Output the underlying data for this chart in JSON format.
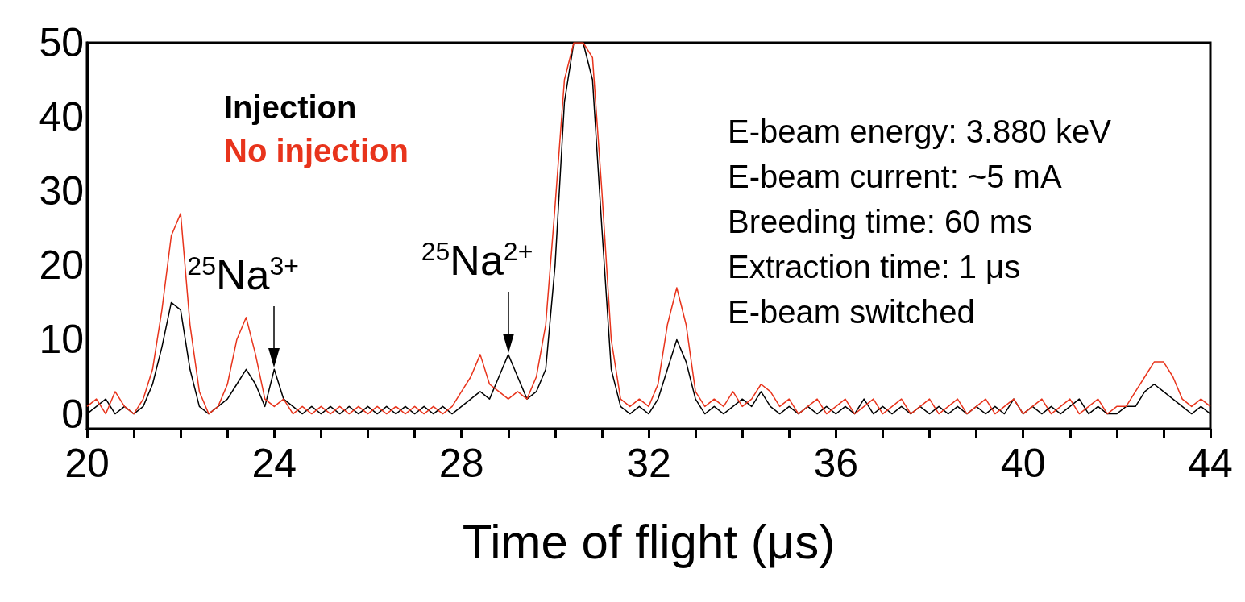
{
  "chart_data": {
    "type": "line",
    "xlabel": "Time of flight (μs)",
    "xlim": [
      20,
      44
    ],
    "ylim": [
      -2,
      50
    ],
    "xticks": [
      20,
      {
        "value": 21,
        "label": null
      },
      {
        "value": 22,
        "label": null
      },
      {
        "value": 23,
        "label": null
      },
      24,
      {
        "value": 25,
        "label": null
      },
      {
        "value": 26,
        "label": null
      },
      {
        "value": 27,
        "label": null
      },
      28,
      {
        "value": 29,
        "label": null
      },
      {
        "value": 30,
        "label": null
      },
      {
        "value": 31,
        "label": null
      },
      32,
      {
        "value": 33,
        "label": null
      },
      {
        "value": 34,
        "label": null
      },
      {
        "value": 35,
        "label": null
      },
      36,
      {
        "value": 37,
        "label": null
      },
      {
        "value": 38,
        "label": null
      },
      {
        "value": 39,
        "label": null
      },
      40,
      {
        "value": 41,
        "label": null
      },
      {
        "value": 42,
        "label": null
      },
      {
        "value": 43,
        "label": null
      },
      44
    ],
    "yticks": [
      0,
      10,
      20,
      30,
      40,
      50
    ],
    "grid": false,
    "legend": "top left",
    "marker": "none",
    "line_style": "solid",
    "x": [
      20,
      20.2,
      20.4,
      20.6,
      20.8,
      21,
      21.2,
      21.4,
      21.6,
      21.8,
      22,
      22.2,
      22.4,
      22.6,
      22.8,
      23,
      23.2,
      23.4,
      23.6,
      23.8,
      24,
      24.2,
      24.4,
      24.6,
      24.8,
      25,
      25.2,
      25.4,
      25.6,
      25.8,
      26,
      26.2,
      26.4,
      26.6,
      26.8,
      27,
      27.2,
      27.4,
      27.6,
      27.8,
      28,
      28.2,
      28.4,
      28.6,
      28.8,
      29,
      29.2,
      29.4,
      29.6,
      29.8,
      30,
      30.2,
      30.4,
      30.6,
      30.8,
      31,
      31.2,
      31.4,
      31.6,
      31.8,
      32,
      32.2,
      32.4,
      32.6,
      32.8,
      33,
      33.2,
      33.4,
      33.6,
      33.8,
      34,
      34.2,
      34.4,
      34.6,
      34.8,
      35,
      35.2,
      35.4,
      35.6,
      35.8,
      36,
      36.2,
      36.4,
      36.6,
      36.8,
      37,
      37.2,
      37.4,
      37.6,
      37.8,
      38,
      38.2,
      38.4,
      38.6,
      38.8,
      39,
      39.2,
      39.4,
      39.6,
      39.8,
      40,
      40.2,
      40.4,
      40.6,
      40.8,
      41,
      41.2,
      41.4,
      41.6,
      41.8,
      42,
      42.2,
      42.4,
      42.6,
      42.8,
      43,
      43.2,
      43.4,
      43.6,
      43.8,
      44
    ],
    "series": [
      {
        "name": "Injection",
        "color": "#000000",
        "values": [
          0,
          1,
          2,
          0,
          1,
          0,
          1,
          4,
          9,
          15,
          14,
          6,
          1,
          0,
          1,
          2,
          4,
          6,
          4,
          1,
          6,
          2,
          1,
          0,
          1,
          0,
          1,
          0,
          1,
          0,
          1,
          0,
          1,
          0,
          1,
          0,
          1,
          0,
          1,
          0,
          1,
          2,
          3,
          2,
          5,
          8,
          5,
          2,
          3,
          6,
          20,
          42,
          50,
          50,
          45,
          25,
          6,
          1,
          0,
          1,
          0,
          2,
          6,
          10,
          7,
          2,
          0,
          1,
          0,
          1,
          2,
          1,
          3,
          1,
          0,
          1,
          0,
          1,
          0,
          1,
          0,
          1,
          0,
          2,
          0,
          1,
          0,
          1,
          0,
          1,
          0,
          1,
          0,
          1,
          0,
          1,
          0,
          1,
          0,
          2,
          0,
          1,
          0,
          1,
          0,
          1,
          2,
          0,
          1,
          0,
          0,
          1,
          1,
          3,
          4,
          3,
          2,
          1,
          0,
          1,
          0
        ]
      },
      {
        "name": "No injection",
        "color": "#e8341c",
        "values": [
          1,
          2,
          0,
          3,
          1,
          0,
          2,
          6,
          14,
          24,
          27,
          12,
          3,
          0,
          1,
          4,
          10,
          13,
          8,
          2,
          1,
          2,
          0,
          1,
          0,
          1,
          0,
          1,
          0,
          1,
          0,
          1,
          0,
          1,
          0,
          1,
          0,
          1,
          0,
          1,
          3,
          5,
          8,
          4,
          3,
          2,
          3,
          2,
          5,
          12,
          28,
          45,
          50,
          50,
          48,
          30,
          10,
          2,
          1,
          2,
          1,
          4,
          12,
          17,
          12,
          3,
          1,
          2,
          1,
          3,
          1,
          2,
          4,
          3,
          1,
          2,
          0,
          1,
          2,
          0,
          1,
          2,
          0,
          1,
          2,
          0,
          1,
          2,
          0,
          1,
          2,
          0,
          1,
          2,
          0,
          1,
          2,
          0,
          1,
          2,
          0,
          1,
          2,
          0,
          1,
          2,
          0,
          1,
          2,
          0,
          1,
          1,
          3,
          5,
          7,
          7,
          5,
          2,
          1,
          2,
          1
        ]
      }
    ],
    "annotations": [
      {
        "text": "$^{25}$Na$^{3+}$",
        "x": 24,
        "y": 6
      },
      {
        "text": "$^{25}$Na$^{2+}$",
        "x": 29,
        "y": 8
      },
      "E-beam energy: 3.880 keV",
      "E-beam current: ~5 mA",
      "Breeding time: 60 ms",
      "Extraction time: 1 μs",
      "E-beam switched"
    ]
  }
}
